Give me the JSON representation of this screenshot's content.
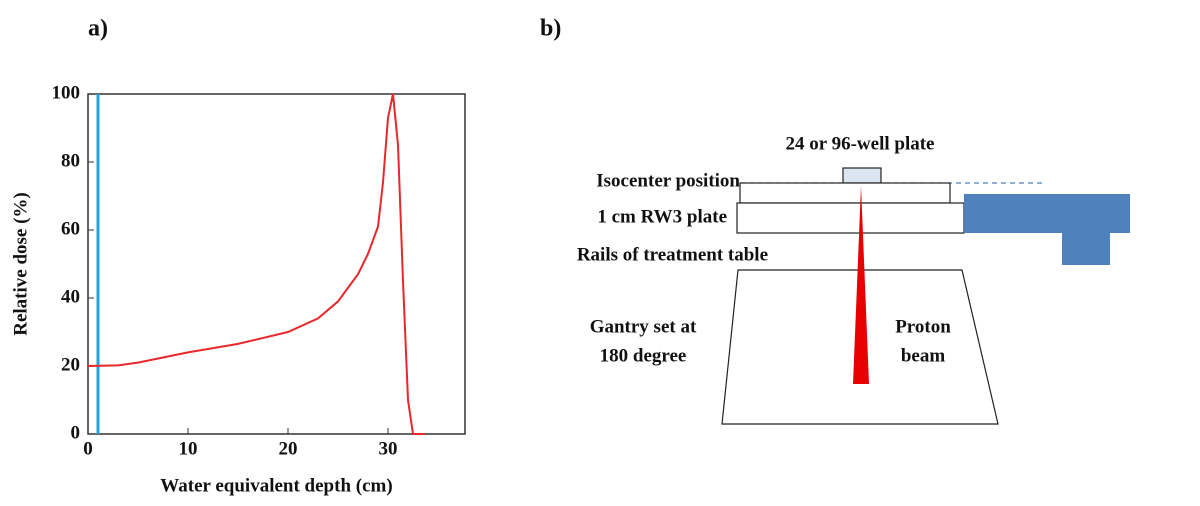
{
  "panel_labels": [
    "a)",
    "b)"
  ],
  "chart_data": {
    "type": "line",
    "xlabel": "Water equivalent depth (cm)",
    "ylabel": "Relative dose (%)",
    "x": [
      0,
      3,
      5,
      10,
      15,
      20,
      23,
      25,
      27,
      28,
      29,
      29.5,
      30,
      30.5,
      31,
      31.5,
      32,
      32.5,
      33.7
    ],
    "values": [
      20,
      20.2,
      21,
      24,
      26.5,
      30,
      34,
      39,
      47,
      53,
      61,
      74,
      93,
      100,
      85,
      45,
      10,
      0,
      0
    ],
    "color": "#e8282b",
    "reference_line": {
      "x": 1,
      "color": "#1ea5e0"
    },
    "xlim": [
      0,
      37.7
    ],
    "xticks": [
      0,
      10,
      20,
      30
    ],
    "ylim": [
      0,
      100
    ],
    "yticks": [
      0,
      20,
      40,
      60,
      80,
      100
    ]
  },
  "diagram": {
    "plate_label": "24 or 96-well plate",
    "isocenter_label": "Isocenter position",
    "rw3_label": "1 cm RW3 plate",
    "rails_label": "Rails of treatment table",
    "gantry_label": [
      "Gantry set at",
      "180 degree"
    ],
    "beam_label": [
      "Proton",
      "beam"
    ]
  }
}
